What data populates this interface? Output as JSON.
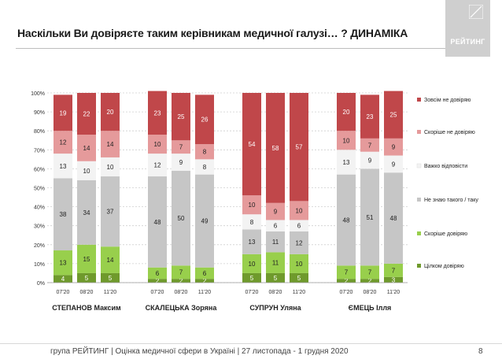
{
  "title": "Наскільки Ви довіряєте таким керівникам медичної галузі… ? ДИНАМІКА",
  "logo_text": "РЕЙТИНГ",
  "footer": "група РЕЙТИНГ  |  Оцінка медичної сфери в Україні  | 27 листопада - 1 грудня 2020",
  "page_number": "8",
  "chart_data": {
    "type": "bar",
    "stacked": true,
    "orientation": "vertical",
    "ylim": [
      0,
      100
    ],
    "yticks": [
      "0%",
      "10%",
      "20%",
      "30%",
      "40%",
      "50%",
      "60%",
      "70%",
      "80%",
      "90%",
      "100%"
    ],
    "grid": true,
    "legend_position": "right",
    "groups": [
      {
        "name": "СТЕПАНОВ Максим",
        "periods": [
          "07'20",
          "08'20",
          "11'20"
        ]
      },
      {
        "name": "СКАЛЕЦЬКА Зоряна",
        "periods": [
          "07'20",
          "08'20",
          "11'20"
        ]
      },
      {
        "name": "СУПРУН Уляна",
        "periods": [
          "07'20",
          "08'20",
          "11'20"
        ]
      },
      {
        "name": "ЄМЕЦЬ Ілля",
        "periods": [
          "07'20",
          "08'20",
          "11'20"
        ]
      }
    ],
    "series": [
      {
        "name": "Цілком довіряю",
        "color": "#6f9a2c",
        "values": [
          4,
          5,
          5,
          2,
          2,
          2,
          5,
          5,
          5,
          2,
          2,
          3
        ]
      },
      {
        "name": "Скоріше довіряю",
        "color": "#98cf4c",
        "values": [
          13,
          15,
          14,
          6,
          7,
          6,
          10,
          11,
          10,
          7,
          7,
          7
        ]
      },
      {
        "name": "Не знаю такого / таку",
        "color": "#c6c6c6",
        "values": [
          38,
          34,
          37,
          48,
          50,
          49,
          13,
          11,
          12,
          48,
          51,
          48
        ]
      },
      {
        "name": "Важко відповісти",
        "color": "#f3f3f3",
        "values": [
          13,
          10,
          10,
          12,
          9,
          8,
          8,
          6,
          6,
          13,
          9,
          9
        ]
      },
      {
        "name": "Скоріше не довіряю",
        "color": "#e59a9b",
        "values": [
          12,
          14,
          14,
          10,
          7,
          8,
          10,
          9,
          10,
          10,
          7,
          9
        ]
      },
      {
        "name": "Зовсім не довіряю",
        "color": "#c0474a",
        "values": [
          19,
          22,
          20,
          23,
          25,
          26,
          54,
          58,
          57,
          20,
          23,
          25
        ]
      }
    ]
  }
}
